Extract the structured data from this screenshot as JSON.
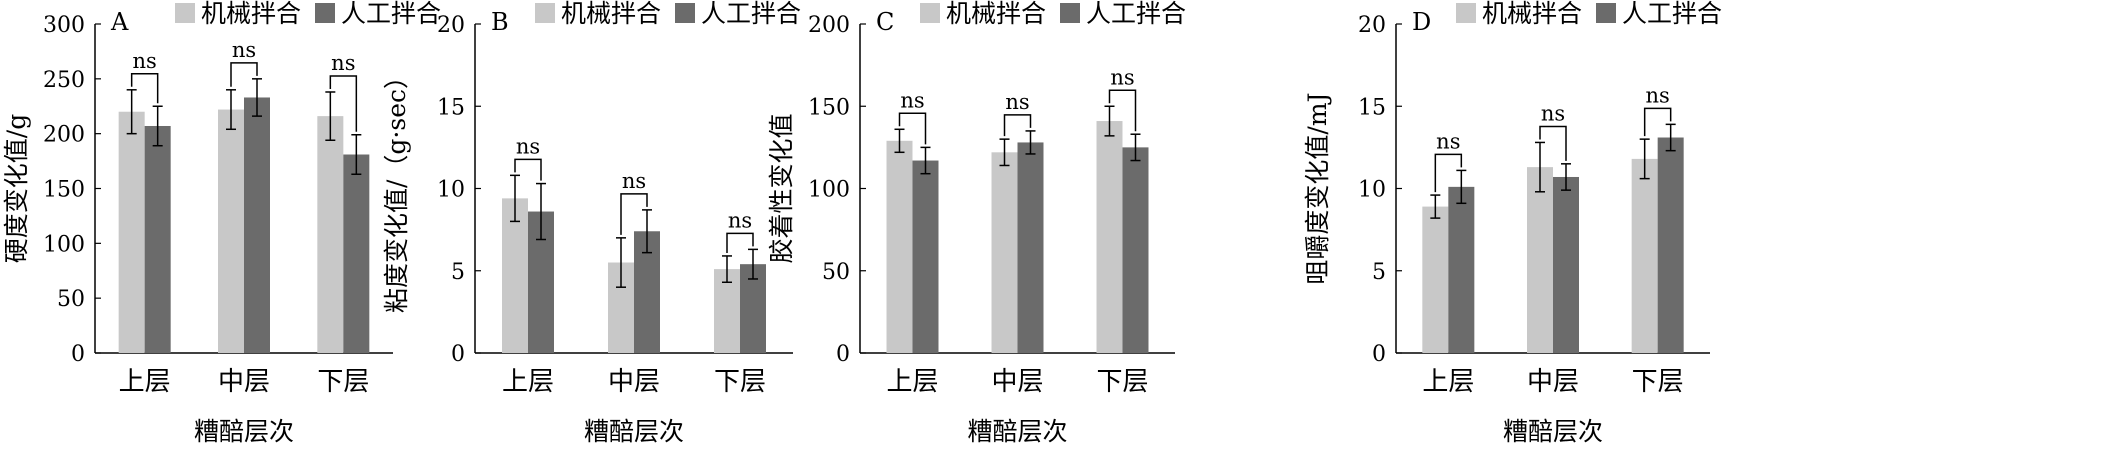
{
  "chart_data": [
    {
      "type": "bar",
      "panel": "A",
      "ylabel": "硬度变化值/g",
      "xlabel": "糟醅层次",
      "categories": [
        "上层",
        "中层",
        "下层"
      ],
      "ylim": [
        0,
        300
      ],
      "yticks": [
        0,
        50,
        100,
        150,
        200,
        250,
        300
      ],
      "series": [
        {
          "name": "机械拌合",
          "values": [
            220,
            222,
            216
          ],
          "errors": [
            20,
            18,
            22
          ]
        },
        {
          "name": "人工拌合",
          "values": [
            207,
            233,
            181
          ],
          "errors": [
            18,
            17,
            18
          ]
        }
      ],
      "significance": [
        "ns",
        "ns",
        "ns"
      ],
      "colors": [
        "#c8c8c8",
        "#6b6b6b"
      ]
    },
    {
      "type": "bar",
      "panel": "B",
      "ylabel": "粘度变化值/（g·sec）",
      "xlabel": "糟醅层次",
      "categories": [
        "上层",
        "中层",
        "下层"
      ],
      "ylim": [
        0,
        20
      ],
      "yticks": [
        0,
        5,
        10,
        15,
        20
      ],
      "series": [
        {
          "name": "机械拌合",
          "values": [
            9.4,
            5.5,
            5.1
          ],
          "errors": [
            1.4,
            1.5,
            0.8
          ]
        },
        {
          "name": "人工拌合",
          "values": [
            8.6,
            7.4,
            5.4
          ],
          "errors": [
            1.7,
            1.3,
            0.9
          ]
        }
      ],
      "significance": [
        "ns",
        "ns",
        "ns"
      ],
      "colors": [
        "#c8c8c8",
        "#6b6b6b"
      ]
    },
    {
      "type": "bar",
      "panel": "C",
      "ylabel": "胶着性变化值",
      "xlabel": "糟醅层次",
      "categories": [
        "上层",
        "中层",
        "下层"
      ],
      "ylim": [
        0,
        200
      ],
      "yticks": [
        0,
        50,
        100,
        150,
        200
      ],
      "series": [
        {
          "name": "机械拌合",
          "values": [
            129,
            122,
            141
          ],
          "errors": [
            7,
            8,
            9
          ]
        },
        {
          "name": "人工拌合",
          "values": [
            117,
            128,
            125
          ],
          "errors": [
            8,
            7,
            8
          ]
        }
      ],
      "significance": [
        "ns",
        "ns",
        "ns"
      ],
      "colors": [
        "#c8c8c8",
        "#6b6b6b"
      ]
    },
    {
      "type": "bar",
      "panel": "D",
      "ylabel": "咀嚼度变化值/mJ",
      "xlabel": "糟醅层次",
      "categories": [
        "上层",
        "中层",
        "下层"
      ],
      "ylim": [
        0,
        20
      ],
      "yticks": [
        0,
        5,
        10,
        15,
        20
      ],
      "series": [
        {
          "name": "机械拌合",
          "values": [
            8.9,
            11.3,
            11.8
          ],
          "errors": [
            0.7,
            1.5,
            1.2
          ]
        },
        {
          "name": "人工拌合",
          "values": [
            10.1,
            10.7,
            13.1
          ],
          "errors": [
            1.0,
            0.8,
            0.8
          ]
        }
      ],
      "significance": [
        "ns",
        "ns",
        "ns"
      ],
      "colors": [
        "#c8c8c8",
        "#6b6b6b"
      ]
    }
  ]
}
